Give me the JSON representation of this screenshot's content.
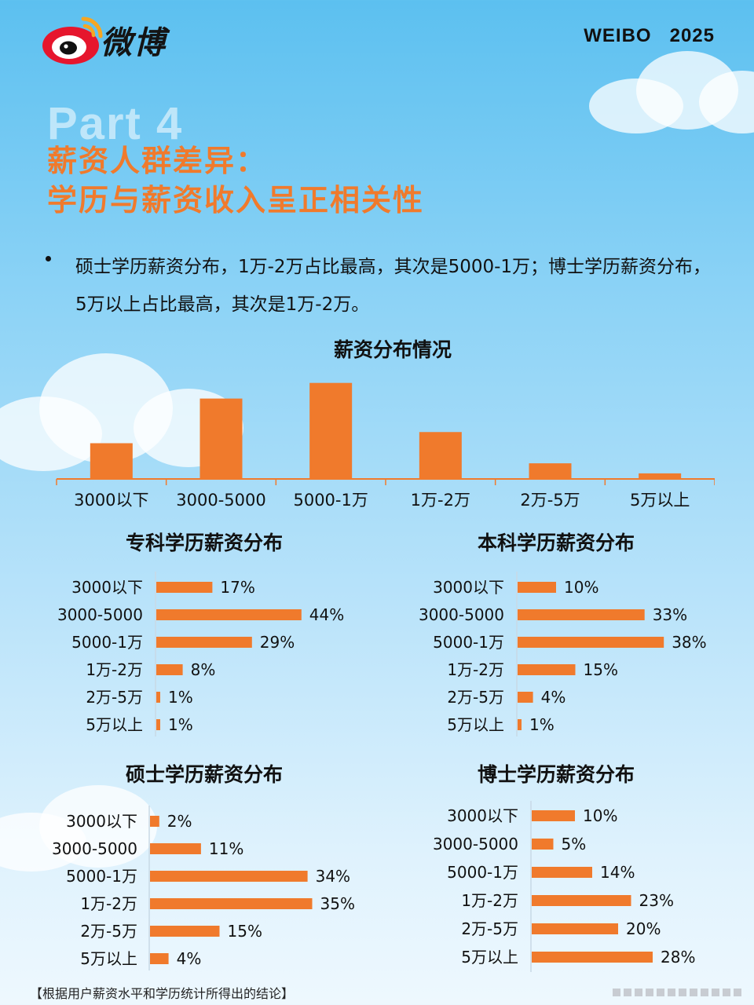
{
  "header": {
    "logo_text": "微博",
    "brand_year": "WEIBO   2025",
    "part_label": "Part 4"
  },
  "title": {
    "line1": "薪资人群差异：",
    "line2": "学历与薪资收入呈正相关性"
  },
  "bullet": {
    "text": "硕士学历薪资分布，1万-2万占比最高，其次是5000-1万；博士学历薪资分布，5万以上占比最高，其次是1万-2万。"
  },
  "colors": {
    "bar": "#f07a2c",
    "title": "#f07a2c",
    "text": "#111111"
  },
  "chart_data": [
    {
      "type": "bar",
      "title": "薪资分布情况",
      "categories": [
        "3000以下",
        "3000-5000",
        "5000-1万",
        "1万-2万",
        "2万-5万",
        "5万以上"
      ],
      "values": [
        16,
        36,
        43,
        21,
        7,
        2.5
      ],
      "ylim": [
        0,
        45
      ],
      "grid": false
    },
    {
      "type": "bar",
      "orientation": "horizontal",
      "title": "专科学历薪资分布",
      "categories": [
        "3000以下",
        "3000-5000",
        "5000-1万",
        "1万-2万",
        "2万-5万",
        "5万以上"
      ],
      "values": [
        17,
        44,
        29,
        8,
        1,
        1
      ],
      "value_labels": [
        "17%",
        "44%",
        "29%",
        "8%",
        "1%",
        "1%"
      ]
    },
    {
      "type": "bar",
      "orientation": "horizontal",
      "title": "本科学历薪资分布",
      "categories": [
        "3000以下",
        "3000-5000",
        "5000-1万",
        "1万-2万",
        "2万-5万",
        "5万以上"
      ],
      "values": [
        10,
        33,
        38,
        15,
        4,
        1
      ],
      "value_labels": [
        "10%",
        "33%",
        "38%",
        "15%",
        "4%",
        "1%"
      ]
    },
    {
      "type": "bar",
      "orientation": "horizontal",
      "title": "硕士学历薪资分布",
      "categories": [
        "3000以下",
        "3000-5000",
        "5000-1万",
        "1万-2万",
        "2万-5万",
        "5万以上"
      ],
      "values": [
        2,
        11,
        34,
        35,
        15,
        4
      ],
      "value_labels": [
        "2%",
        "11%",
        "34%",
        "35%",
        "15%",
        "4%"
      ]
    },
    {
      "type": "bar",
      "orientation": "horizontal",
      "title": "博士学历薪资分布",
      "categories": [
        "3000以下",
        "3000-5000",
        "5000-1万",
        "1万-2万",
        "2万-5万",
        "5万以上"
      ],
      "values": [
        10,
        5,
        14,
        23,
        20,
        28
      ],
      "value_labels": [
        "10%",
        "5%",
        "14%",
        "23%",
        "20%",
        "28%"
      ]
    }
  ],
  "footnote": "【根据用户薪资水平和学历统计所得出的结论】"
}
